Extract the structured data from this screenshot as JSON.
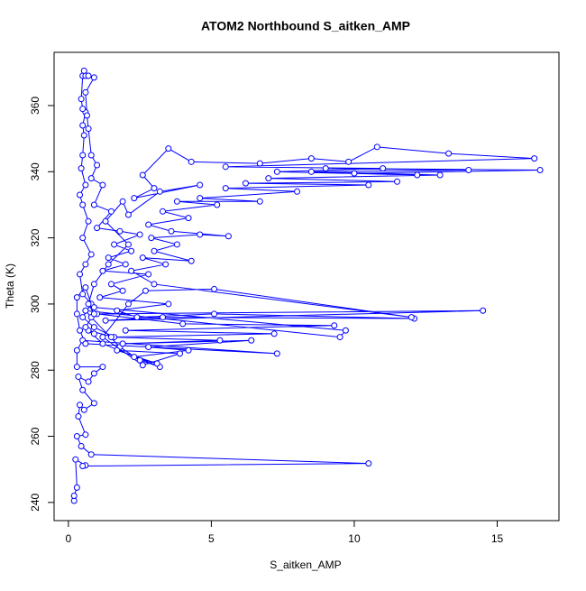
{
  "chart_data": {
    "type": "line",
    "marker": "circle",
    "title": "ATOM2 Northbound S_aitken_AMP",
    "x_label": "S_aitken_AMP",
    "y_label": "Theta (K)",
    "xlim": [
      -0.5,
      17.16
    ],
    "ylim": [
      234.5,
      376.1
    ],
    "xticks": [
      0,
      5,
      10,
      15
    ],
    "yticks": [
      240,
      260,
      280,
      300,
      320,
      340,
      360
    ],
    "series": [
      {
        "color": "#0000ff",
        "x": [
          0.2,
          0.2,
          0.3,
          0.25,
          0.6,
          0.5,
          10.5,
          0.8,
          0.45,
          0.3,
          0.6,
          0.35,
          0.4,
          0.55,
          0.9,
          0.5,
          0.35,
          0.7,
          0.9,
          1.2,
          0.3,
          0.3,
          0.5,
          7.3,
          0.6,
          0.4,
          0.3,
          0.3,
          0.6,
          0.8,
          0.5,
          0.9,
          1.6,
          0.7,
          1.2,
          3.2,
          2.5,
          1.8,
          0.8,
          0.6,
          9.5,
          9.7,
          0.9,
          0.5,
          0.4,
          0.6,
          0.8,
          0.5,
          0.7,
          0.5,
          0.4,
          0.6,
          0.45,
          0.5,
          0.55,
          0.5,
          0.6,
          0.5,
          0.45,
          0.5,
          0.55,
          0.6,
          0.7,
          0.9,
          0.6,
          0.65,
          0.7,
          0.8,
          1.0,
          0.8,
          1.2,
          0.9,
          1.5,
          1.0,
          1.8,
          2.5,
          1.6,
          2.2,
          1.4,
          2.0,
          1.2,
          2.8,
          1.5,
          1.9,
          1.1,
          3.5,
          1.7,
          2.4,
          5.1,
          12.1,
          3.3,
          1.3,
          14.5,
          1.0,
          4.0,
          9.3,
          2.0,
          7.2,
          1.5,
          5.3,
          1.9,
          6.4,
          2.8,
          4.2,
          2.3,
          3.1,
          1.7,
          3.9,
          2.6,
          1.2,
          2.1,
          2.7,
          5.1,
          12.0,
          3.0,
          2.2,
          3.4,
          2.6,
          4.3,
          3.0,
          3.8,
          2.9,
          4.6,
          5.6,
          3.6,
          2.8,
          4.2,
          3.3,
          5.2,
          3.8,
          6.7,
          4.6,
          8.0,
          5.5,
          10.5,
          6.2,
          11.5,
          7.0,
          13.0,
          8.5,
          14.0,
          9.0,
          16.5,
          10.0,
          12.2,
          7.3,
          11.0,
          5.5,
          16.3,
          13.3,
          10.8,
          9.8,
          8.5,
          6.7,
          4.3,
          3.5,
          2.6,
          3.0,
          2.3,
          4.6,
          3.2,
          2.1,
          1.9,
          1.3,
          2.1,
          1.4,
          0.9,
          0.7,
          0.9,
          0.6,
          0.9
        ],
        "values": [
          240.5,
          242,
          244.5,
          253,
          251.2,
          251,
          251.8,
          254.5,
          257,
          260,
          260.5,
          266,
          269.5,
          268,
          270,
          274,
          278,
          276.5,
          279,
          281,
          281,
          286,
          289,
          285,
          288,
          292,
          297,
          302,
          305,
          300,
          296,
          293,
          290,
          292,
          288,
          281,
          283,
          287,
          296,
          298,
          290,
          292,
          299,
          303,
          309,
          312,
          315,
          320,
          325,
          330,
          333,
          336,
          341,
          345,
          351,
          354,
          358,
          359,
          362,
          369,
          370.5,
          369,
          369,
          368.5,
          364,
          357,
          353,
          345,
          342,
          338,
          336,
          330,
          328,
          323,
          322,
          321,
          318,
          316,
          314,
          312,
          310,
          309,
          306,
          304,
          302,
          300,
          298,
          296,
          297,
          295.6,
          296,
          295,
          298,
          297,
          294,
          293.5,
          292,
          291,
          290,
          289,
          288,
          289,
          287,
          286,
          284,
          282,
          286,
          285,
          281.5,
          290,
          300,
          304,
          304.5,
          296,
          306,
          310,
          312,
          314,
          313,
          316,
          318,
          320,
          321,
          320.5,
          322,
          324,
          326,
          328,
          330,
          331,
          331,
          332,
          334,
          335,
          336,
          336.5,
          337,
          338,
          339,
          340,
          340.5,
          341,
          340.5,
          339.5,
          339,
          340,
          341,
          341.5,
          344,
          345.5,
          347.5,
          343,
          344,
          342.5,
          343,
          347,
          339,
          335,
          332,
          336,
          334,
          327,
          331,
          325,
          318,
          312,
          306,
          300,
          297,
          293,
          291
        ]
      }
    ]
  }
}
